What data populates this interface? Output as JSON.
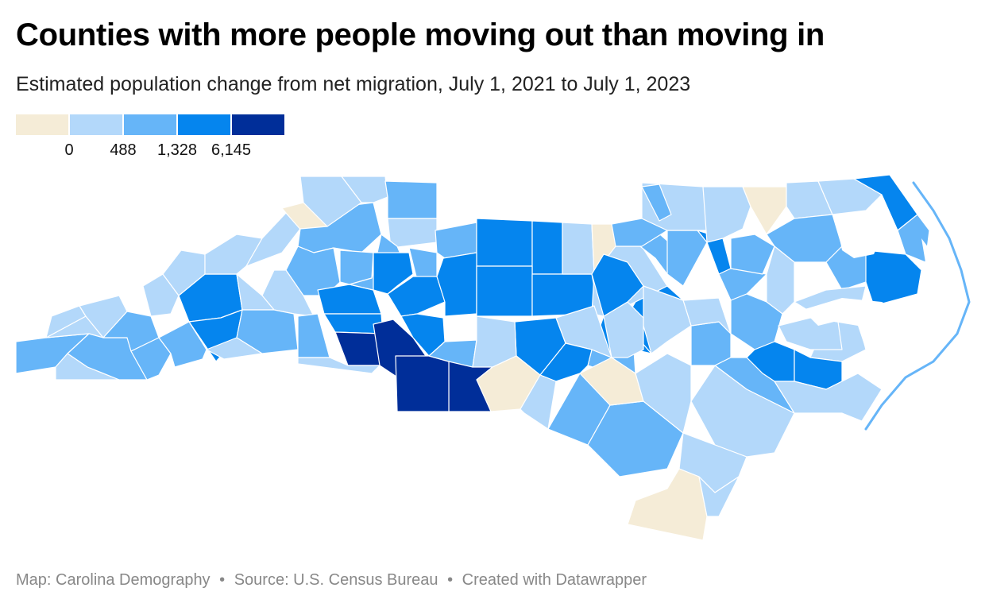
{
  "title": "Counties with more people moving out than moving in",
  "subtitle": "Estimated population change from net migration, July 1, 2021 to July 1, 2023",
  "colors": {
    "bin0": "#f5ecd7",
    "bin1": "#b3d8fa",
    "bin2": "#66b5f8",
    "bin3": "#0585ee",
    "bin4": "#002e99",
    "water": "#ffffff",
    "border": "#ffffff"
  },
  "legend": {
    "bins": [
      "bin0",
      "bin1",
      "bin2",
      "bin3",
      "bin4"
    ],
    "ticks": [
      "0",
      "488",
      "1,328",
      "6,145"
    ]
  },
  "map": {
    "region": "North Carolina",
    "feature_type": "counties",
    "counties": [
      {
        "bin": "bin2"
      },
      {
        "bin": "bin1"
      },
      {
        "bin": "bin1"
      },
      {
        "bin": "bin1"
      },
      {
        "bin": "bin2"
      },
      {
        "bin": "bin1"
      },
      {
        "bin": "bin2"
      },
      {
        "bin": "bin2"
      },
      {
        "bin": "bin1"
      },
      {
        "bin": "bin3"
      },
      {
        "bin": "bin3"
      },
      {
        "bin": "bin1"
      },
      {
        "bin": "bin1"
      },
      {
        "bin": "bin1"
      },
      {
        "bin": "bin0"
      },
      {
        "bin": "bin2"
      },
      {
        "bin": "bin1"
      },
      {
        "bin": "bin1"
      },
      {
        "bin": "bin2"
      },
      {
        "bin": "bin1"
      },
      {
        "bin": "bin2"
      },
      {
        "bin": "bin2"
      },
      {
        "bin": "bin1"
      },
      {
        "bin": "bin1"
      },
      {
        "bin": "bin2"
      },
      {
        "bin": "bin2"
      },
      {
        "bin": "bin3"
      },
      {
        "bin": "bin3"
      },
      {
        "bin": "bin4"
      },
      {
        "bin": "bin4"
      },
      {
        "bin": "bin1"
      },
      {
        "bin": "bin2"
      },
      {
        "bin": "bin1"
      },
      {
        "bin": "bin2"
      },
      {
        "bin": "bin3"
      },
      {
        "bin": "bin2"
      },
      {
        "bin": "bin3"
      },
      {
        "bin": "bin3"
      },
      {
        "bin": "bin2"
      },
      {
        "bin": "bin3"
      },
      {
        "bin": "bin3"
      },
      {
        "bin": "bin3"
      },
      {
        "bin": "bin3"
      },
      {
        "bin": "bin3"
      },
      {
        "bin": "bin1"
      },
      {
        "bin": "bin0"
      },
      {
        "bin": "bin1"
      },
      {
        "bin": "bin2"
      },
      {
        "bin": "bin2"
      },
      {
        "bin": "bin3"
      },
      {
        "bin": "bin2"
      },
      {
        "bin": "bin2"
      },
      {
        "bin": "bin3"
      },
      {
        "bin": "bin3"
      },
      {
        "bin": "bin2"
      },
      {
        "bin": "bin3"
      },
      {
        "bin": "bin1"
      },
      {
        "bin": "bin3"
      },
      {
        "bin": "bin4"
      },
      {
        "bin": "bin4"
      },
      {
        "bin": "bin2"
      },
      {
        "bin": "bin1"
      },
      {
        "bin": "bin0"
      },
      {
        "bin": "bin1"
      },
      {
        "bin": "bin2"
      },
      {
        "bin": "bin2"
      },
      {
        "bin": "bin0"
      },
      {
        "bin": "bin1"
      },
      {
        "bin": "bin2"
      },
      {
        "bin": "bin1"
      },
      {
        "bin": "bin2"
      },
      {
        "bin": "bin1"
      },
      {
        "bin": "bin1"
      },
      {
        "bin": "bin0"
      },
      {
        "bin": "bin1"
      },
      {
        "bin": "bin1"
      },
      {
        "bin": "bin3"
      },
      {
        "bin": "bin2"
      },
      {
        "bin": "bin2"
      },
      {
        "bin": "bin2"
      },
      {
        "bin": "bin3"
      },
      {
        "bin": "bin1"
      },
      {
        "bin": "bin1"
      },
      {
        "bin": "bin2"
      },
      {
        "bin": "bin3"
      },
      {
        "bin": "bin1"
      },
      {
        "bin": "bin3"
      },
      {
        "bin": "bin2"
      },
      {
        "bin": "bin1"
      },
      {
        "bin": "bin1"
      },
      {
        "bin": "bin1"
      },
      {
        "bin": "bin0"
      },
      {
        "bin": "bin1"
      },
      {
        "bin": "bin2"
      },
      {
        "bin": "bin1"
      },
      {
        "bin": "bin1"
      },
      {
        "bin": "bin1"
      },
      {
        "bin": "bin3"
      },
      {
        "bin": "bin4"
      },
      {
        "bin": "bin3"
      }
    ]
  },
  "footer": {
    "map_credit": "Map: Carolina Demography",
    "source": "Source: U.S. Census Bureau",
    "created_with": "Created with Datawrapper",
    "separator": "•"
  }
}
